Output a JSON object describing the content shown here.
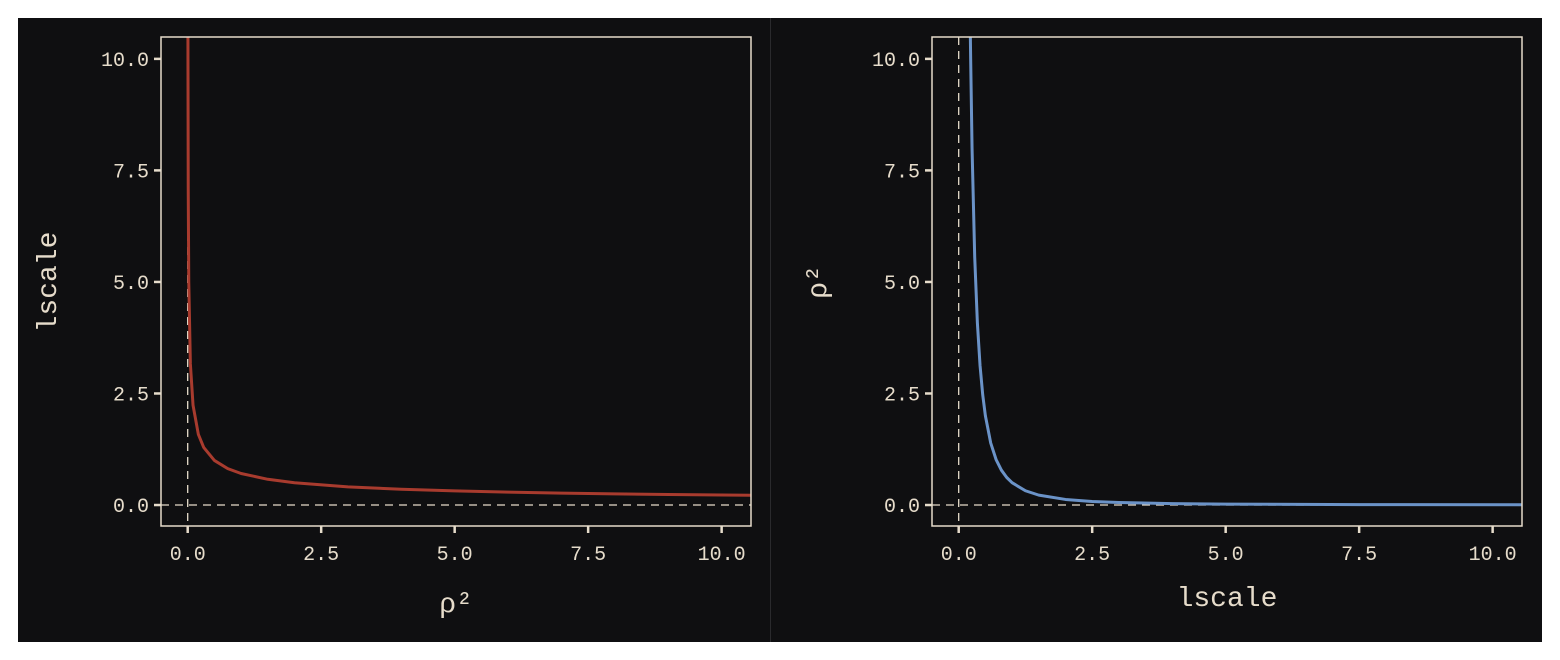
{
  "colors": {
    "background": "#0f0f11",
    "foreground": "#e6dccb",
    "left_series": "#a83b2e",
    "right_series": "#6b93c8"
  },
  "chart_data": [
    {
      "type": "line",
      "xlabel": "ρ²",
      "ylabel": "lscale",
      "xlim": [
        -0.5,
        10.55
      ],
      "ylim": [
        -0.47,
        10.49
      ],
      "xticks": [
        0,
        2.5,
        5,
        7.5,
        10
      ],
      "xtick_labels": [
        "0.0",
        "2.5",
        "5.0",
        "7.5",
        "10.0"
      ],
      "yticks": [
        0,
        2.5,
        5,
        7.5,
        10
      ],
      "ytick_labels": [
        "0.0",
        "2.5",
        "5.0",
        "7.5",
        "10.0"
      ],
      "reference_lines": {
        "x": 0,
        "y": 0,
        "style": "dashed"
      },
      "grid": false,
      "series": [
        {
          "color": "#a83b2e",
          "x": [
            0.0045,
            0.005,
            0.01,
            0.02,
            0.05,
            0.1,
            0.2,
            0.3,
            0.5,
            0.75,
            1,
            1.5,
            2,
            3,
            4,
            5,
            6,
            7,
            8,
            9,
            10,
            10.55
          ],
          "y": [
            10.54,
            10.0,
            7.071,
            5.0,
            3.162,
            2.236,
            1.581,
            1.291,
            1.0,
            0.816,
            0.707,
            0.577,
            0.5,
            0.408,
            0.354,
            0.316,
            0.289,
            0.267,
            0.25,
            0.236,
            0.224,
            0.218
          ]
        }
      ]
    },
    {
      "type": "line",
      "xlabel": "lscale",
      "ylabel": "ρ²",
      "xlim": [
        -0.5,
        10.55
      ],
      "ylim": [
        -0.47,
        10.49
      ],
      "xticks": [
        0,
        2.5,
        5,
        7.5,
        10
      ],
      "xtick_labels": [
        "0.0",
        "2.5",
        "5.0",
        "7.5",
        "10.0"
      ],
      "yticks": [
        0,
        2.5,
        5,
        7.5,
        10
      ],
      "ytick_labels": [
        "0.0",
        "2.5",
        "5.0",
        "7.5",
        "10.0"
      ],
      "reference_lines": {
        "x": 0,
        "y": 0,
        "style": "dashed"
      },
      "grid": false,
      "series": [
        {
          "color": "#6b93c8",
          "x": [
            0.218,
            0.224,
            0.25,
            0.3,
            0.35,
            0.4,
            0.45,
            0.5,
            0.6,
            0.7,
            0.8,
            0.9,
            1,
            1.25,
            1.5,
            2,
            2.5,
            3,
            4,
            5,
            7.5,
            10.55
          ],
          "y": [
            10.52,
            10.0,
            8.0,
            5.556,
            4.082,
            3.125,
            2.469,
            2.0,
            1.389,
            1.02,
            0.781,
            0.617,
            0.5,
            0.32,
            0.222,
            0.125,
            0.08,
            0.056,
            0.031,
            0.02,
            0.009,
            0.005
          ]
        }
      ]
    }
  ]
}
